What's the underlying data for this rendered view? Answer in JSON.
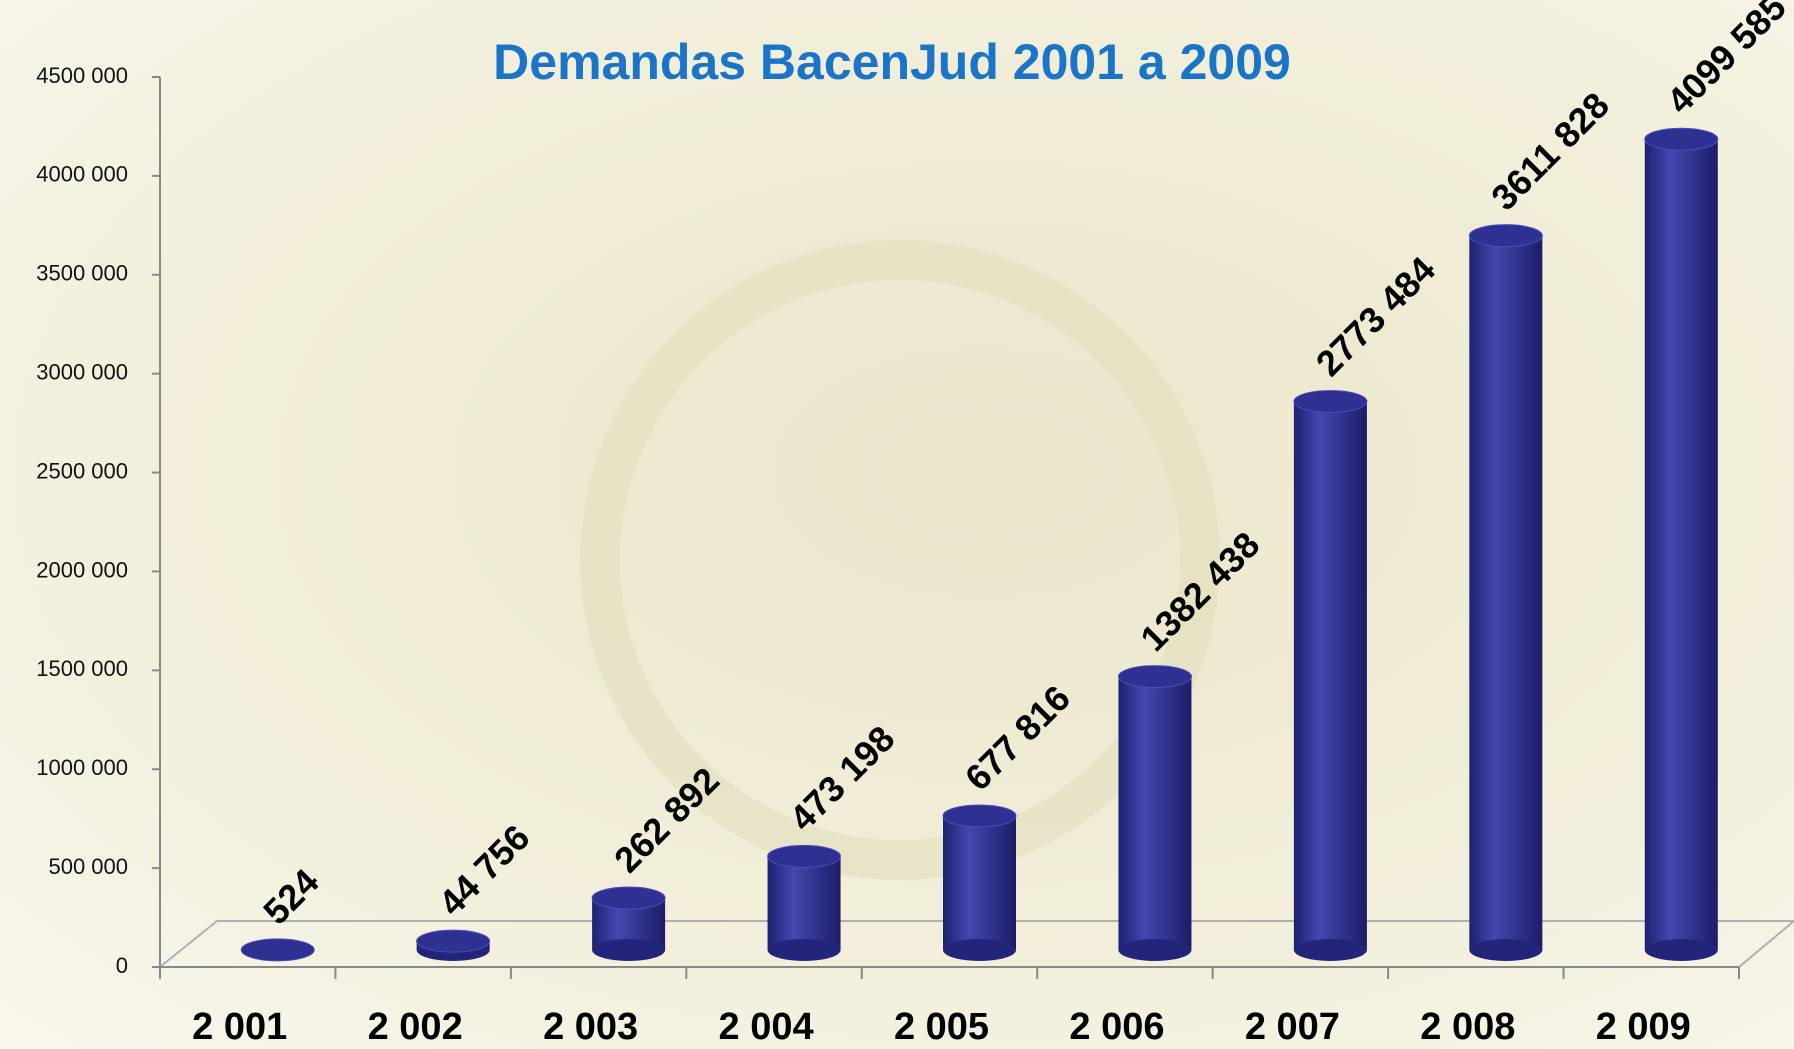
{
  "chart_data": {
    "type": "bar",
    "title": "Demandas BacenJud 2001 a 2009",
    "categories": [
      "2 001",
      "2 002",
      "2 003",
      "2 004",
      "2 005",
      "2 006",
      "2 007",
      "2 008",
      "2 009"
    ],
    "values": [
      524,
      44756,
      262892,
      473198,
      677816,
      1382438,
      2773484,
      3611828,
      4099585
    ],
    "value_labels": [
      "524",
      "44 756",
      "262 892",
      "473 198",
      "677 816",
      "1382 438",
      "2773 484",
      "3611 828",
      "4099 585"
    ],
    "color": "#2e3192",
    "ylim": [
      0,
      4500000
    ],
    "yticks": [
      0,
      {
        "value": 500000,
        "label": "500 000"
      },
      {
        "value": 1000000,
        "label": "1000 000"
      },
      {
        "value": 1500000,
        "label": "1500 000"
      },
      {
        "value": 2000000,
        "label": "2000 000"
      },
      {
        "value": 2500000,
        "label": "2500 000"
      },
      {
        "value": 3000000,
        "label": "3000 000"
      },
      {
        "value": 3500000,
        "label": "3500 000"
      },
      {
        "value": 4000000,
        "label": "4000 000"
      },
      {
        "value": 4500000,
        "label": "4500 000"
      }
    ]
  }
}
